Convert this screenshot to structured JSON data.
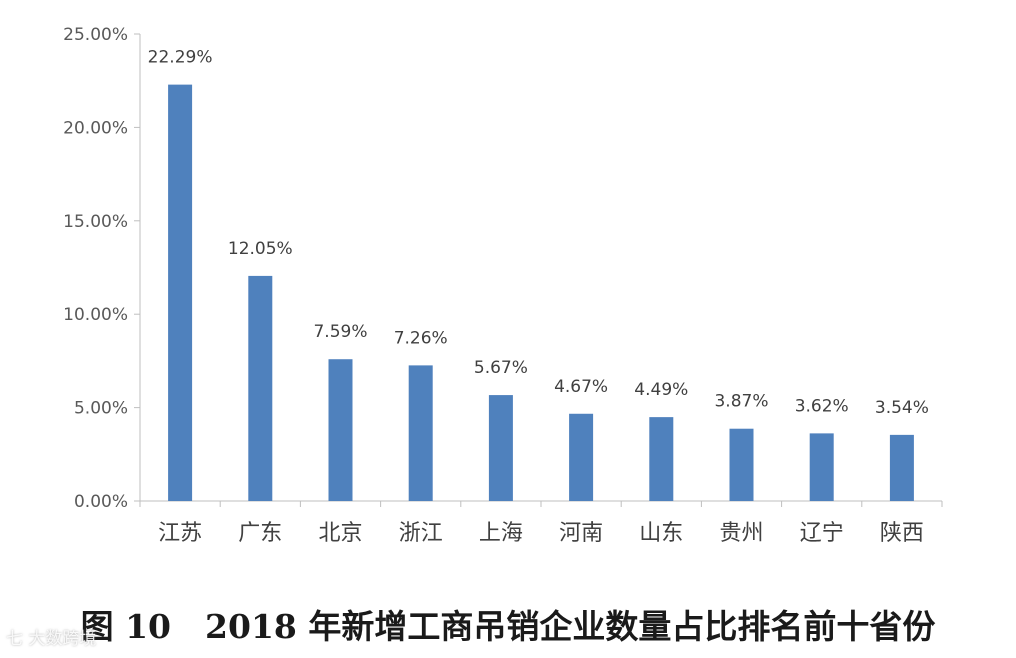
{
  "chart_data": {
    "type": "bar",
    "categories": [
      "江苏",
      "广东",
      "北京",
      "浙江",
      "上海",
      "河南",
      "山东",
      "贵州",
      "辽宁",
      "陕西"
    ],
    "values": [
      22.29,
      12.05,
      7.59,
      7.26,
      5.67,
      4.67,
      4.49,
      3.87,
      3.62,
      3.54
    ],
    "data_labels": [
      "22.29%",
      "12.05%",
      "7.59%",
      "7.26%",
      "5.67%",
      "4.67%",
      "4.49%",
      "3.87%",
      "3.62%",
      "3.54%"
    ],
    "y_ticks": [
      0,
      5,
      10,
      15,
      20,
      25
    ],
    "y_tick_labels": [
      "0.00%",
      "5.00%",
      "10.00%",
      "15.00%",
      "20.00%",
      "25.00%"
    ],
    "ylim": [
      0,
      25
    ],
    "grid": false,
    "legend": "none",
    "bar_color": "#4f81bd",
    "axis_color": "#bfbfbf"
  },
  "caption": {
    "figure_number": "图 10",
    "text": "2018 年新增工商吊销企业数量占比排名前十省份"
  },
  "watermark": "七 大数跨境"
}
